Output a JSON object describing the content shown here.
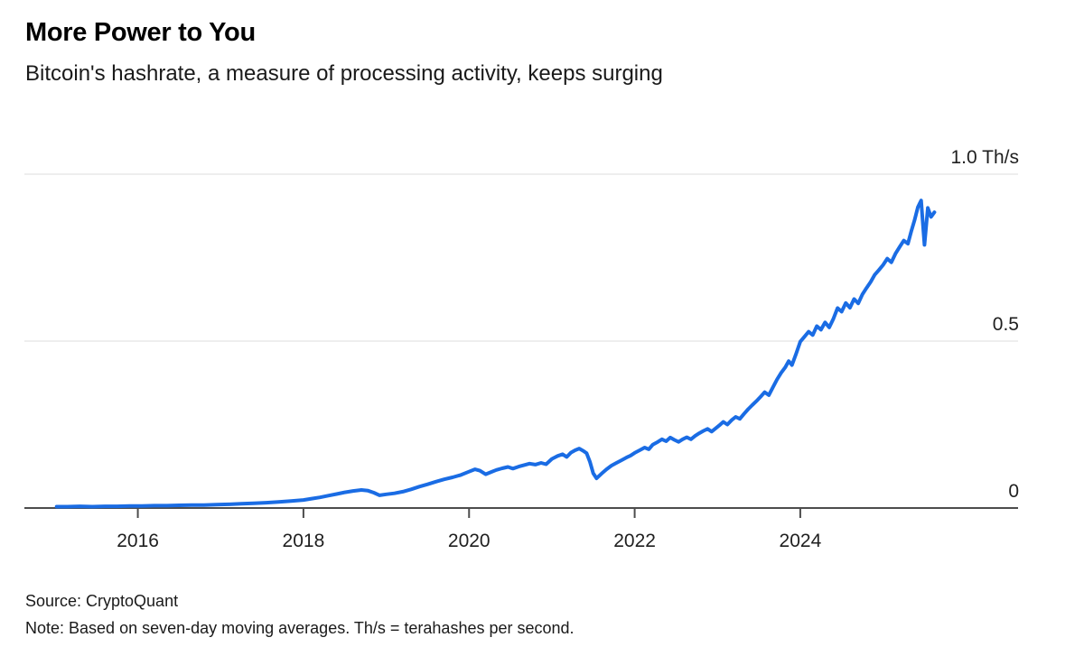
{
  "header": {
    "title": "More Power to You",
    "subtitle": "Bitcoin's hashrate, a measure of processing activity, keeps surging"
  },
  "chart_data": {
    "type": "line",
    "title": "More Power to You",
    "subtitle": "Bitcoin's hashrate, a measure of processing activity, keeps surging",
    "unit": "Th/s",
    "xlim": [
      2014.63,
      2026.63
    ],
    "ylim": [
      0,
      1.0
    ],
    "grid": "horizontal",
    "legend": "none",
    "x_ticks": [
      {
        "value": 2016,
        "label": "2016"
      },
      {
        "value": 2018,
        "label": "2018"
      },
      {
        "value": 2020,
        "label": "2020"
      },
      {
        "value": 2022,
        "label": "2022"
      },
      {
        "value": 2024,
        "label": "2024"
      }
    ],
    "y_ticks": [
      {
        "value": 1.0,
        "label": "1.0 Th/s"
      },
      {
        "value": 0.5,
        "label": "0.5"
      },
      {
        "value": 0,
        "label": "0"
      }
    ],
    "series": [
      {
        "name": "Bitcoin hashrate, seven-day moving average (Th/s)",
        "color": "#1a6ce4",
        "points": [
          [
            2015.02,
            0.004
          ],
          [
            2015.15,
            0.004
          ],
          [
            2015.3,
            0.005
          ],
          [
            2015.45,
            0.004
          ],
          [
            2015.6,
            0.005
          ],
          [
            2015.75,
            0.005
          ],
          [
            2015.9,
            0.006
          ],
          [
            2016.05,
            0.006
          ],
          [
            2016.2,
            0.007
          ],
          [
            2016.35,
            0.007
          ],
          [
            2016.5,
            0.008
          ],
          [
            2016.65,
            0.009
          ],
          [
            2016.8,
            0.009
          ],
          [
            2016.95,
            0.01
          ],
          [
            2017.1,
            0.011
          ],
          [
            2017.25,
            0.013
          ],
          [
            2017.4,
            0.014
          ],
          [
            2017.55,
            0.016
          ],
          [
            2017.7,
            0.018
          ],
          [
            2017.85,
            0.021
          ],
          [
            2018.0,
            0.024
          ],
          [
            2018.1,
            0.028
          ],
          [
            2018.2,
            0.032
          ],
          [
            2018.3,
            0.037
          ],
          [
            2018.4,
            0.042
          ],
          [
            2018.5,
            0.047
          ],
          [
            2018.6,
            0.051
          ],
          [
            2018.7,
            0.054
          ],
          [
            2018.78,
            0.052
          ],
          [
            2018.85,
            0.046
          ],
          [
            2018.92,
            0.038
          ],
          [
            2019.0,
            0.041
          ],
          [
            2019.1,
            0.044
          ],
          [
            2019.2,
            0.049
          ],
          [
            2019.3,
            0.056
          ],
          [
            2019.4,
            0.064
          ],
          [
            2019.5,
            0.071
          ],
          [
            2019.6,
            0.079
          ],
          [
            2019.7,
            0.086
          ],
          [
            2019.8,
            0.092
          ],
          [
            2019.9,
            0.099
          ],
          [
            2020.0,
            0.109
          ],
          [
            2020.07,
            0.116
          ],
          [
            2020.13,
            0.112
          ],
          [
            2020.2,
            0.101
          ],
          [
            2020.27,
            0.108
          ],
          [
            2020.33,
            0.114
          ],
          [
            2020.4,
            0.119
          ],
          [
            2020.47,
            0.123
          ],
          [
            2020.53,
            0.118
          ],
          [
            2020.6,
            0.124
          ],
          [
            2020.67,
            0.129
          ],
          [
            2020.73,
            0.133
          ],
          [
            2020.8,
            0.13
          ],
          [
            2020.87,
            0.135
          ],
          [
            2020.93,
            0.131
          ],
          [
            2021.0,
            0.147
          ],
          [
            2021.07,
            0.156
          ],
          [
            2021.13,
            0.161
          ],
          [
            2021.18,
            0.153
          ],
          [
            2021.23,
            0.166
          ],
          [
            2021.28,
            0.173
          ],
          [
            2021.33,
            0.178
          ],
          [
            2021.38,
            0.171
          ],
          [
            2021.42,
            0.164
          ],
          [
            2021.46,
            0.138
          ],
          [
            2021.5,
            0.104
          ],
          [
            2021.54,
            0.089
          ],
          [
            2021.6,
            0.103
          ],
          [
            2021.66,
            0.116
          ],
          [
            2021.72,
            0.127
          ],
          [
            2021.78,
            0.135
          ],
          [
            2021.84,
            0.143
          ],
          [
            2021.9,
            0.151
          ],
          [
            2021.95,
            0.157
          ],
          [
            2022.0,
            0.165
          ],
          [
            2022.06,
            0.173
          ],
          [
            2022.12,
            0.181
          ],
          [
            2022.17,
            0.176
          ],
          [
            2022.22,
            0.19
          ],
          [
            2022.28,
            0.198
          ],
          [
            2022.33,
            0.206
          ],
          [
            2022.38,
            0.2
          ],
          [
            2022.43,
            0.211
          ],
          [
            2022.48,
            0.204
          ],
          [
            2022.53,
            0.198
          ],
          [
            2022.58,
            0.206
          ],
          [
            2022.63,
            0.212
          ],
          [
            2022.68,
            0.206
          ],
          [
            2022.73,
            0.216
          ],
          [
            2022.78,
            0.224
          ],
          [
            2022.83,
            0.231
          ],
          [
            2022.88,
            0.237
          ],
          [
            2022.93,
            0.229
          ],
          [
            2022.97,
            0.237
          ],
          [
            2023.02,
            0.247
          ],
          [
            2023.07,
            0.258
          ],
          [
            2023.12,
            0.25
          ],
          [
            2023.17,
            0.263
          ],
          [
            2023.22,
            0.273
          ],
          [
            2023.27,
            0.267
          ],
          [
            2023.32,
            0.282
          ],
          [
            2023.37,
            0.296
          ],
          [
            2023.42,
            0.308
          ],
          [
            2023.47,
            0.32
          ],
          [
            2023.52,
            0.333
          ],
          [
            2023.57,
            0.347
          ],
          [
            2023.62,
            0.338
          ],
          [
            2023.67,
            0.362
          ],
          [
            2023.72,
            0.385
          ],
          [
            2023.77,
            0.405
          ],
          [
            2023.82,
            0.422
          ],
          [
            2023.86,
            0.44
          ],
          [
            2023.9,
            0.428
          ],
          [
            2023.95,
            0.462
          ],
          [
            2024.0,
            0.498
          ],
          [
            2024.05,
            0.513
          ],
          [
            2024.1,
            0.528
          ],
          [
            2024.15,
            0.518
          ],
          [
            2024.2,
            0.545
          ],
          [
            2024.25,
            0.534
          ],
          [
            2024.3,
            0.556
          ],
          [
            2024.35,
            0.541
          ],
          [
            2024.4,
            0.567
          ],
          [
            2024.45,
            0.599
          ],
          [
            2024.5,
            0.588
          ],
          [
            2024.55,
            0.614
          ],
          [
            2024.6,
            0.6
          ],
          [
            2024.65,
            0.626
          ],
          [
            2024.7,
            0.613
          ],
          [
            2024.75,
            0.64
          ],
          [
            2024.8,
            0.659
          ],
          [
            2024.85,
            0.677
          ],
          [
            2024.9,
            0.699
          ],
          [
            2024.95,
            0.713
          ],
          [
            2025.0,
            0.728
          ],
          [
            2025.05,
            0.747
          ],
          [
            2025.1,
            0.736
          ],
          [
            2025.15,
            0.762
          ],
          [
            2025.2,
            0.782
          ],
          [
            2025.25,
            0.801
          ],
          [
            2025.3,
            0.792
          ],
          [
            2025.34,
            0.828
          ],
          [
            2025.38,
            0.862
          ],
          [
            2025.42,
            0.901
          ],
          [
            2025.46,
            0.921
          ],
          [
            2025.5,
            0.788
          ],
          [
            2025.54,
            0.899
          ],
          [
            2025.58,
            0.872
          ],
          [
            2025.62,
            0.886
          ]
        ]
      }
    ]
  },
  "footer": {
    "source": "Source: CryptoQuant",
    "note": "Note: Based on seven-day moving averages. Th/s = terahashes per second."
  },
  "colors": {
    "line": "#1a6ce4",
    "axis": "#4d4d4d",
    "gridline": "#e4e4e4",
    "text": "#1f1f1f",
    "background": "#ffffff"
  }
}
